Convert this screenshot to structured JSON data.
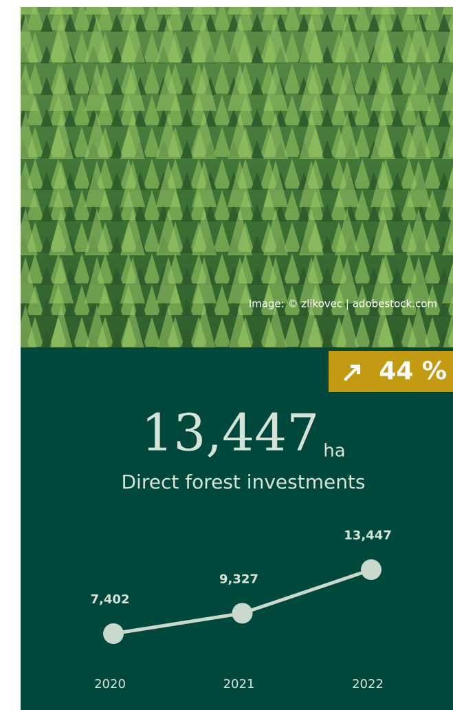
{
  "image_credit": "Image: © zlikovec | adobestock.com",
  "change": "44 %",
  "headline": {
    "value": "13,447",
    "unit": "ha",
    "label": "Direct forest investments"
  },
  "chart_data": {
    "type": "line",
    "categories": [
      "2020",
      "2021",
      "2022"
    ],
    "values": [
      7402,
      9327,
      13447
    ],
    "value_labels": [
      "7,402",
      "9,327",
      "13,447"
    ],
    "color": "#c9d9cc"
  }
}
